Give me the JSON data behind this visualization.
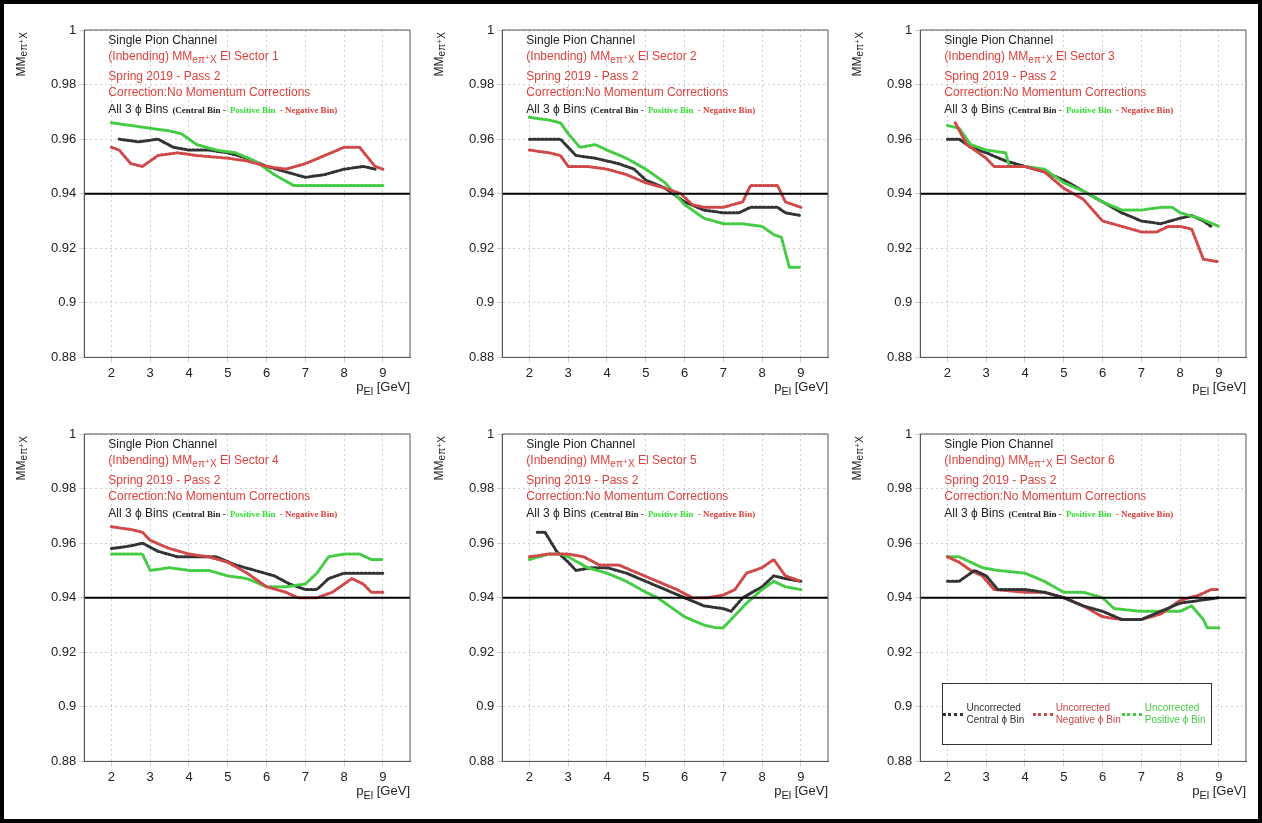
{
  "chart_data": [
    {
      "type": "line",
      "ylabel": "MM$_{eπ⁺X}$",
      "xlabel": "p$_{El}$ [GeV]",
      "xlim": [
        1.3,
        9.7
      ],
      "xticks": [
        2,
        3,
        4,
        5,
        6,
        7,
        8,
        9
      ],
      "ylim": [
        0.88,
        1
      ],
      "yticks": [
        0.88,
        0.9,
        0.92,
        0.94,
        0.96,
        0.98,
        1
      ],
      "grid": true,
      "line_style": "dotted",
      "annotations": [
        "Single Pion Channel",
        "(Inbending) MM$_{eπ⁺X}$ El Sector 1",
        "Spring 2019 - Pass 2",
        "Correction:No Momentum Corrections",
        "All 3 ϕ Bins",
        "(Central Bin -",
        "Positive Bin",
        "- Negative Bin)"
      ],
      "ref_lines": [
        {
          "axis": "y",
          "value": 0.94,
          "color": "#000000"
        }
      ],
      "series": [
        {
          "color": "#d04848",
          "x": [
            2.0,
            2.2,
            2.5,
            2.8,
            3.2,
            3.7,
            4.2,
            5.0,
            5.5,
            6.0,
            6.5,
            7.0,
            7.5,
            8.0,
            8.4,
            8.8,
            9.0
          ],
          "values": [
            0.957,
            0.956,
            0.951,
            0.95,
            0.954,
            0.955,
            0.954,
            0.953,
            0.952,
            0.95,
            0.949,
            0.951,
            0.954,
            0.957,
            0.957,
            0.95,
            0.949
          ]
        },
        {
          "color": "#44cc44",
          "x": [
            2.0,
            2.5,
            3.0,
            3.5,
            3.8,
            4.2,
            4.7,
            5.2,
            5.7,
            6.2,
            6.7,
            7.0,
            7.5,
            8.0,
            8.5,
            9.0
          ],
          "values": [
            0.966,
            0.965,
            0.964,
            0.963,
            0.962,
            0.958,
            0.956,
            0.955,
            0.952,
            0.947,
            0.943,
            0.943,
            0.943,
            0.943,
            0.943,
            0.943
          ]
        },
        {
          "color": "#333333",
          "x": [
            2.2,
            2.7,
            3.2,
            3.6,
            4.0,
            4.5,
            5.0,
            5.5,
            6.0,
            6.5,
            7.0,
            7.5,
            8.0,
            8.5,
            8.8
          ],
          "values": [
            0.96,
            0.959,
            0.96,
            0.957,
            0.956,
            0.956,
            0.955,
            0.953,
            0.95,
            0.948,
            0.946,
            0.947,
            0.949,
            0.95,
            0.949
          ]
        }
      ]
    },
    {
      "type": "line",
      "ylabel": "MM$_{eπ⁺X}$",
      "xlabel": "p$_{El}$ [GeV]",
      "xlim": [
        1.3,
        9.7
      ],
      "xticks": [
        2,
        3,
        4,
        5,
        6,
        7,
        8,
        9
      ],
      "ylim": [
        0.88,
        1
      ],
      "yticks": [
        0.88,
        0.9,
        0.92,
        0.94,
        0.96,
        0.98,
        1
      ],
      "grid": true,
      "line_style": "dotted",
      "annotations": [
        "Single Pion Channel",
        "(Inbending) MM$_{eπ⁺X}$ El Sector 2",
        "Spring 2019 - Pass 2",
        "Correction:No Momentum Corrections",
        "All 3 ϕ Bins",
        "(Central Bin -",
        "Positive Bin",
        "- Negative Bin)"
      ],
      "ref_lines": [
        {
          "axis": "y",
          "value": 0.94,
          "color": "#000000"
        }
      ],
      "series": [
        {
          "color": "#d04848",
          "x": [
            2.0,
            2.5,
            2.8,
            3.0,
            3.5,
            4.0,
            4.5,
            5.0,
            5.5,
            5.9,
            6.2,
            6.5,
            7.0,
            7.5,
            7.7,
            8.0,
            8.4,
            8.6,
            9.0
          ],
          "values": [
            0.956,
            0.955,
            0.954,
            0.95,
            0.95,
            0.949,
            0.947,
            0.944,
            0.942,
            0.94,
            0.936,
            0.935,
            0.935,
            0.937,
            0.943,
            0.943,
            0.943,
            0.937,
            0.935
          ]
        },
        {
          "color": "#44cc44",
          "x": [
            2.0,
            2.5,
            2.8,
            3.0,
            3.3,
            3.7,
            4.0,
            4.5,
            5.0,
            5.5,
            6.0,
            6.5,
            7.0,
            7.5,
            8.0,
            8.3,
            8.5,
            8.7,
            9.0
          ],
          "values": [
            0.968,
            0.967,
            0.966,
            0.962,
            0.957,
            0.958,
            0.956,
            0.953,
            0.949,
            0.944,
            0.936,
            0.931,
            0.929,
            0.929,
            0.928,
            0.925,
            0.924,
            0.913,
            0.913
          ]
        },
        {
          "color": "#333333",
          "x": [
            2.0,
            2.5,
            2.8,
            3.0,
            3.2,
            3.7,
            4.3,
            4.7,
            5.0,
            5.5,
            6.0,
            6.5,
            7.0,
            7.4,
            7.7,
            8.0,
            8.4,
            8.6,
            9.0
          ],
          "values": [
            0.96,
            0.96,
            0.96,
            0.957,
            0.954,
            0.953,
            0.951,
            0.949,
            0.945,
            0.942,
            0.937,
            0.934,
            0.933,
            0.933,
            0.935,
            0.935,
            0.935,
            0.933,
            0.932
          ]
        }
      ]
    },
    {
      "type": "line",
      "ylabel": "MM$_{eπ⁺X}$",
      "xlabel": "p$_{El}$ [GeV]",
      "xlim": [
        1.3,
        9.7
      ],
      "xticks": [
        2,
        3,
        4,
        5,
        6,
        7,
        8,
        9
      ],
      "ylim": [
        0.88,
        1
      ],
      "yticks": [
        0.88,
        0.9,
        0.92,
        0.94,
        0.96,
        0.98,
        1
      ],
      "grid": true,
      "line_style": "dotted",
      "annotations": [
        "Single Pion Channel",
        "(Inbending) MM$_{eπ⁺X}$ El Sector 3",
        "Spring 2019 - Pass 2",
        "Correction:No Momentum Corrections",
        "All 3 ϕ Bins",
        "(Central Bin -",
        "Positive Bin",
        "- Negative Bin)"
      ],
      "ref_lines": [
        {
          "axis": "y",
          "value": 0.94,
          "color": "#000000"
        }
      ],
      "series": [
        {
          "color": "#d04848",
          "x": [
            2.2,
            2.5,
            3.0,
            3.2,
            3.6,
            4.0,
            4.5,
            5.0,
            5.5,
            6.0,
            6.5,
            7.0,
            7.4,
            7.7,
            8.0,
            8.3,
            8.6,
            9.0
          ],
          "values": [
            0.966,
            0.958,
            0.953,
            0.95,
            0.95,
            0.95,
            0.948,
            0.942,
            0.938,
            0.93,
            0.928,
            0.926,
            0.926,
            0.928,
            0.928,
            0.927,
            0.916,
            0.915
          ]
        },
        {
          "color": "#44cc44",
          "x": [
            2.0,
            2.3,
            2.6,
            3.0,
            3.5,
            3.6,
            4.0,
            4.5,
            5.0,
            5.5,
            6.0,
            6.5,
            7.0,
            7.5,
            7.8,
            8.0,
            8.5,
            9.0
          ],
          "values": [
            0.965,
            0.964,
            0.958,
            0.956,
            0.955,
            0.95,
            0.95,
            0.949,
            0.944,
            0.941,
            0.937,
            0.934,
            0.934,
            0.935,
            0.935,
            0.933,
            0.931,
            0.928
          ]
        },
        {
          "color": "#333333",
          "x": [
            2.0,
            2.3,
            2.6,
            3.0,
            3.5,
            4.0,
            4.5,
            5.0,
            5.5,
            6.0,
            6.5,
            7.0,
            7.5,
            8.0,
            8.3,
            8.6,
            8.8
          ],
          "values": [
            0.96,
            0.96,
            0.957,
            0.955,
            0.952,
            0.95,
            0.948,
            0.945,
            0.941,
            0.937,
            0.933,
            0.93,
            0.929,
            0.931,
            0.932,
            0.93,
            0.928
          ]
        }
      ]
    },
    {
      "type": "line",
      "ylabel": "MM$_{eπ⁺X}$",
      "xlabel": "p$_{El}$ [GeV]",
      "xlim": [
        1.3,
        9.7
      ],
      "xticks": [
        2,
        3,
        4,
        5,
        6,
        7,
        8,
        9
      ],
      "ylim": [
        0.88,
        1
      ],
      "yticks": [
        0.88,
        0.9,
        0.92,
        0.94,
        0.96,
        0.98,
        1
      ],
      "grid": true,
      "line_style": "dotted",
      "annotations": [
        "Single Pion Channel",
        "(Inbending) MM$_{eπ⁺X}$ El Sector 4",
        "Spring 2019 - Pass 2",
        "Correction:No Momentum Corrections",
        "All 3 ϕ Bins",
        "(Central Bin -",
        "Positive Bin",
        "- Negative Bin)"
      ],
      "ref_lines": [
        {
          "axis": "y",
          "value": 0.94,
          "color": "#000000"
        }
      ],
      "series": [
        {
          "color": "#d04848",
          "x": [
            2.0,
            2.5,
            2.8,
            3.0,
            3.5,
            4.0,
            4.5,
            5.0,
            5.5,
            6.0,
            6.5,
            6.8,
            7.3,
            7.7,
            8.2,
            8.5,
            8.7,
            9.0
          ],
          "values": [
            0.966,
            0.965,
            0.964,
            0.961,
            0.958,
            0.956,
            0.955,
            0.953,
            0.949,
            0.944,
            0.942,
            0.94,
            0.94,
            0.942,
            0.947,
            0.945,
            0.942,
            0.942
          ]
        },
        {
          "color": "#44cc44",
          "x": [
            2.0,
            2.5,
            2.8,
            3.0,
            3.5,
            4.0,
            4.5,
            5.0,
            5.5,
            6.0,
            6.5,
            7.0,
            7.3,
            7.6,
            8.0,
            8.4,
            8.7,
            9.0
          ],
          "values": [
            0.956,
            0.956,
            0.956,
            0.95,
            0.951,
            0.95,
            0.95,
            0.948,
            0.947,
            0.944,
            0.944,
            0.945,
            0.949,
            0.955,
            0.956,
            0.956,
            0.954,
            0.954
          ]
        },
        {
          "color": "#333333",
          "x": [
            2.0,
            2.5,
            2.8,
            3.2,
            3.7,
            4.2,
            4.7,
            5.2,
            5.7,
            6.2,
            6.6,
            7.0,
            7.3,
            7.6,
            8.0,
            8.5,
            9.0
          ],
          "values": [
            0.958,
            0.959,
            0.96,
            0.957,
            0.955,
            0.955,
            0.955,
            0.952,
            0.95,
            0.948,
            0.945,
            0.943,
            0.943,
            0.947,
            0.949,
            0.949,
            0.949
          ]
        }
      ]
    },
    {
      "type": "line",
      "ylabel": "MM$_{eπ⁺X}$",
      "xlabel": "p$_{El}$ [GeV]",
      "xlim": [
        1.3,
        9.7
      ],
      "xticks": [
        2,
        3,
        4,
        5,
        6,
        7,
        8,
        9
      ],
      "ylim": [
        0.88,
        1
      ],
      "yticks": [
        0.88,
        0.9,
        0.92,
        0.94,
        0.96,
        0.98,
        1
      ],
      "grid": true,
      "line_style": "dotted",
      "annotations": [
        "Single Pion Channel",
        "(Inbending) MM$_{eπ⁺X}$ El Sector 5",
        "Spring 2019 - Pass 2",
        "Correction:No Momentum Corrections",
        "All 3 ϕ Bins",
        "(Central Bin -",
        "Positive Bin",
        "- Negative Bin)"
      ],
      "ref_lines": [
        {
          "axis": "y",
          "value": 0.94,
          "color": "#000000"
        }
      ],
      "series": [
        {
          "color": "#d04848",
          "x": [
            2.0,
            2.5,
            3.0,
            3.4,
            3.8,
            4.3,
            4.8,
            5.3,
            5.8,
            6.2,
            6.6,
            7.0,
            7.3,
            7.6,
            8.0,
            8.3,
            8.6,
            9.0
          ],
          "values": [
            0.955,
            0.956,
            0.956,
            0.955,
            0.952,
            0.952,
            0.949,
            0.946,
            0.943,
            0.94,
            0.94,
            0.941,
            0.943,
            0.949,
            0.951,
            0.954,
            0.948,
            0.946
          ]
        },
        {
          "color": "#44cc44",
          "x": [
            2.0,
            2.5,
            2.8,
            3.0,
            3.5,
            4.0,
            4.5,
            5.0,
            5.3,
            6.0,
            6.5,
            6.8,
            7.0,
            7.2,
            7.6,
            8.0,
            8.3,
            8.6,
            9.0
          ],
          "values": [
            0.954,
            0.956,
            0.956,
            0.955,
            0.951,
            0.949,
            0.946,
            0.942,
            0.94,
            0.933,
            0.93,
            0.929,
            0.929,
            0.932,
            0.938,
            0.943,
            0.946,
            0.944,
            0.943
          ]
        },
        {
          "color": "#333333",
          "x": [
            2.2,
            2.4,
            2.7,
            3.0,
            3.2,
            3.6,
            4.0,
            4.5,
            5.0,
            5.5,
            6.0,
            6.5,
            7.0,
            7.2,
            7.5,
            8.0,
            8.3,
            8.6,
            9.0
          ],
          "values": [
            0.964,
            0.964,
            0.957,
            0.953,
            0.95,
            0.951,
            0.951,
            0.949,
            0.946,
            0.943,
            0.94,
            0.937,
            0.936,
            0.935,
            0.94,
            0.944,
            0.948,
            0.947,
            0.946
          ]
        }
      ]
    },
    {
      "type": "line",
      "ylabel": "MM$_{eπ⁺X}$",
      "xlabel": "p$_{El}$ [GeV]",
      "xlim": [
        1.3,
        9.7
      ],
      "xticks": [
        2,
        3,
        4,
        5,
        6,
        7,
        8,
        9
      ],
      "ylim": [
        0.88,
        1
      ],
      "yticks": [
        0.88,
        0.9,
        0.92,
        0.94,
        0.96,
        0.98,
        1
      ],
      "grid": true,
      "line_style": "dotted",
      "legend": "bottom",
      "annotations": [
        "Single Pion Channel",
        "(Inbending) MM$_{eπ⁺X}$ El Sector 6",
        "Spring 2019 - Pass 2",
        "Correction:No Momentum Corrections",
        "All 3 ϕ Bins",
        "(Central Bin -",
        "Positive Bin",
        "- Negative Bin)"
      ],
      "ref_lines": [
        {
          "axis": "y",
          "value": 0.94,
          "color": "#000000"
        }
      ],
      "series": [
        {
          "name": "Uncorrected Central ϕ Bin",
          "color": "#333333",
          "x": [
            2.0,
            2.3,
            2.5,
            2.7,
            3.0,
            3.3,
            4.0,
            4.5,
            5.0,
            5.5,
            6.0,
            6.5,
            7.0,
            7.5,
            8.0,
            8.5,
            9.0
          ],
          "values": [
            0.946,
            0.946,
            0.948,
            0.95,
            0.948,
            0.943,
            0.943,
            0.942,
            0.94,
            0.937,
            0.935,
            0.932,
            0.932,
            0.935,
            0.938,
            0.939,
            0.94
          ]
        },
        {
          "name": "Uncorrected Negative ϕ Bin",
          "color": "#d04848",
          "x": [
            2.0,
            2.3,
            2.6,
            2.9,
            3.2,
            4.0,
            4.5,
            5.0,
            5.5,
            6.0,
            6.5,
            7.0,
            7.5,
            8.0,
            8.5,
            8.8,
            9.0
          ],
          "values": [
            0.955,
            0.953,
            0.95,
            0.948,
            0.943,
            0.942,
            0.942,
            0.94,
            0.937,
            0.933,
            0.932,
            0.932,
            0.934,
            0.939,
            0.941,
            0.943,
            0.943
          ]
        },
        {
          "name": "Uncorrected Positive ϕ Bin",
          "color": "#44cc44",
          "x": [
            2.0,
            2.3,
            2.6,
            2.9,
            3.3,
            4.0,
            4.5,
            5.0,
            5.5,
            6.0,
            6.3,
            7.0,
            7.5,
            8.0,
            8.3,
            8.6,
            8.7,
            9.0
          ],
          "values": [
            0.955,
            0.955,
            0.953,
            0.951,
            0.95,
            0.949,
            0.946,
            0.942,
            0.942,
            0.94,
            0.936,
            0.935,
            0.935,
            0.935,
            0.937,
            0.932,
            0.929,
            0.929
          ]
        }
      ]
    }
  ]
}
